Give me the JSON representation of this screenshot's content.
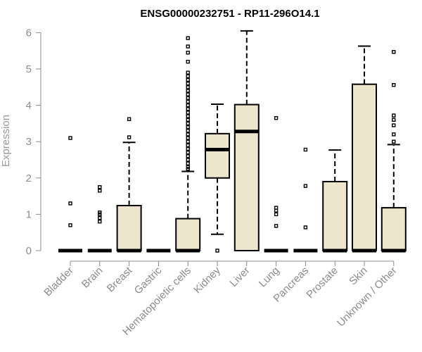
{
  "chart_data": {
    "type": "boxplot",
    "title": "ENSG00000232751 - RP11-296O14.1",
    "xlabel": "",
    "ylabel": "Expression",
    "ylim": [
      0,
      6.1
    ],
    "yticks": [
      0,
      1,
      2,
      3,
      4,
      5,
      6
    ],
    "box_fill": "#ede6cc",
    "categories": [
      "Bladder",
      "Brain",
      "Breast",
      "Gastric",
      "Hematopoietic cells",
      "Kidney",
      "Liver",
      "Lung",
      "Pancreas",
      "Prostate",
      "Skin",
      "Unknown / Other"
    ],
    "series": [
      {
        "name": "Bladder",
        "q1": 0,
        "median": 0,
        "q3": 0,
        "whisker_low": 0,
        "whisker_high": 0,
        "outliers": [
          0.7,
          1.3,
          3.1
        ]
      },
      {
        "name": "Brain",
        "q1": 0,
        "median": 0,
        "q3": 0,
        "whisker_low": 0,
        "whisker_high": 0,
        "outliers": [
          0.8,
          0.9,
          1.0,
          1.05,
          1.65,
          1.75
        ]
      },
      {
        "name": "Breast",
        "q1": 0,
        "median": 0,
        "q3": 1.24,
        "whisker_low": 0,
        "whisker_high": 2.98,
        "outliers": [
          3.12,
          3.62
        ]
      },
      {
        "name": "Gastric",
        "q1": 0,
        "median": 0,
        "q3": 0,
        "whisker_low": 0,
        "whisker_high": 0,
        "outliers": []
      },
      {
        "name": "Hematopoietic cells",
        "q1": 0,
        "median": 0,
        "q3": 0.88,
        "whisker_low": 0,
        "whisker_high": 2.18,
        "outliers": [
          2.25,
          2.3,
          2.4,
          2.5,
          2.6,
          2.7,
          2.8,
          2.9,
          3.0,
          3.1,
          3.2,
          3.3,
          3.4,
          3.5,
          3.6,
          3.7,
          3.8,
          3.9,
          4.0,
          4.1,
          4.2,
          4.3,
          4.4,
          4.5,
          4.6,
          4.7,
          4.8,
          4.9,
          5.2,
          5.45,
          5.62,
          5.85
        ]
      },
      {
        "name": "Kidney",
        "q1": 2.0,
        "median": 2.78,
        "q3": 3.22,
        "whisker_low": 0.45,
        "whisker_high": 4.03,
        "outliers": [
          0.0
        ]
      },
      {
        "name": "Liver",
        "q1": 0,
        "median": 3.28,
        "q3": 4.02,
        "whisker_low": 0,
        "whisker_high": 6.05,
        "outliers": []
      },
      {
        "name": "Lung",
        "q1": 0,
        "median": 0,
        "q3": 0,
        "whisker_low": 0,
        "whisker_high": 0,
        "outliers": [
          0.68,
          1.0,
          1.1,
          1.18,
          3.65
        ]
      },
      {
        "name": "Pancreas",
        "q1": 0,
        "median": 0,
        "q3": 0,
        "whisker_low": 0,
        "whisker_high": 0,
        "outliers": [
          0.64,
          1.78,
          2.78
        ]
      },
      {
        "name": "Prostate",
        "q1": 0,
        "median": 0,
        "q3": 1.9,
        "whisker_low": 0,
        "whisker_high": 2.77,
        "outliers": []
      },
      {
        "name": "Skin",
        "q1": 0,
        "median": 0,
        "q3": 4.58,
        "whisker_low": 0,
        "whisker_high": 5.63,
        "outliers": []
      },
      {
        "name": "Unknown / Other",
        "q1": 0,
        "median": 0,
        "q3": 1.18,
        "whisker_low": 0,
        "whisker_high": 2.92,
        "outliers": [
          3.0,
          3.2,
          3.45,
          3.6,
          3.72,
          4.56,
          5.47
        ]
      }
    ]
  }
}
